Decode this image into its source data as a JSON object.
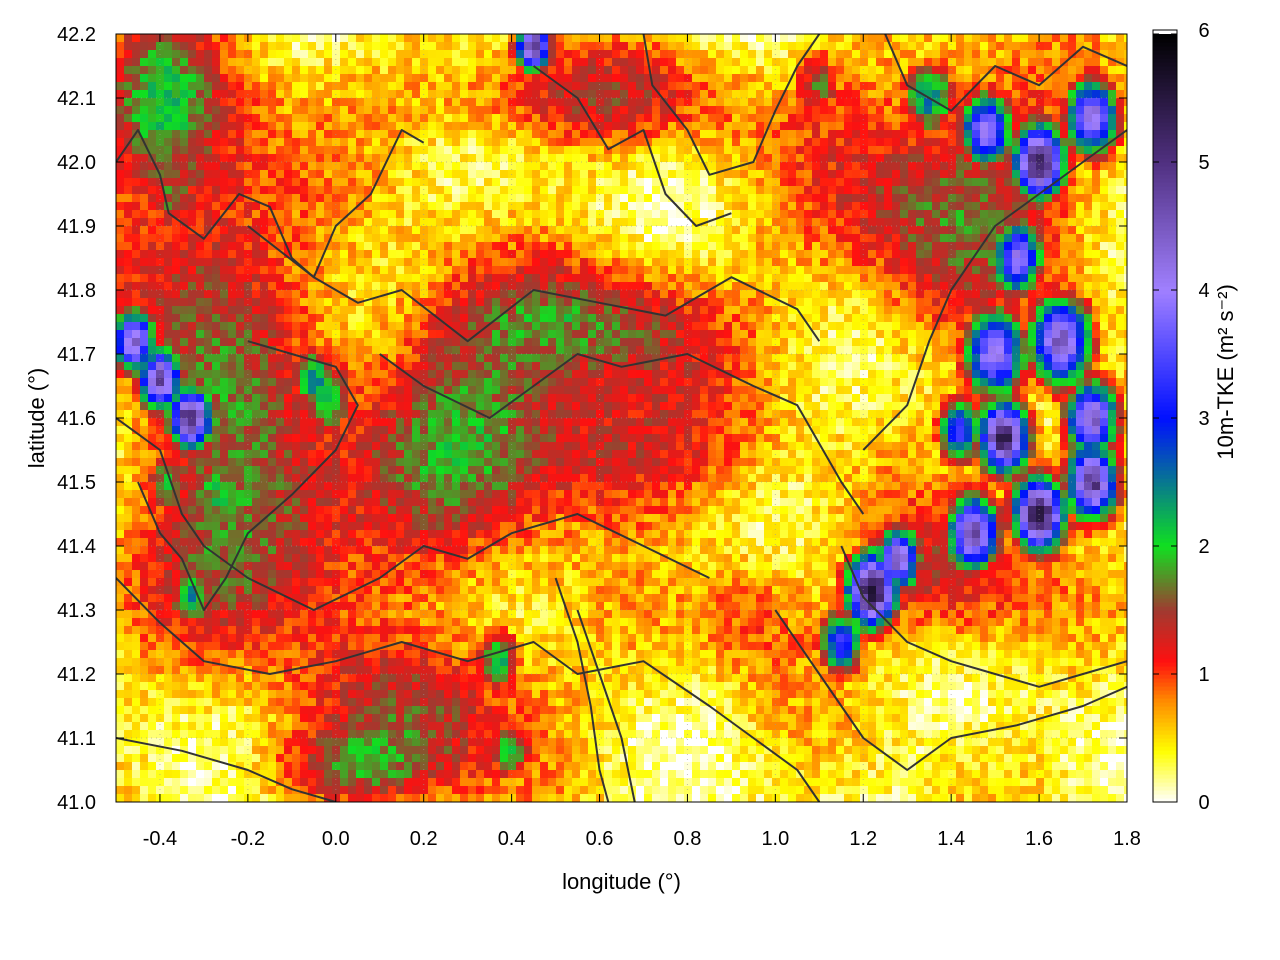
{
  "chart_data": {
    "type": "heatmap",
    "title": "",
    "xlabel": "longitude (°)",
    "ylabel": "latitude (°)",
    "colorbar_label": "10m-TKE (m² s⁻²)",
    "xlim": [
      -0.5,
      1.8
    ],
    "ylim": [
      41.0,
      42.2
    ],
    "zlim": [
      0,
      6
    ],
    "x_ticks": [
      "-0.4",
      "-0.2",
      "0.0",
      "0.2",
      "0.4",
      "0.6",
      "0.8",
      "1.0",
      "1.2",
      "1.4",
      "1.6",
      "1.8"
    ],
    "x_tick_values": [
      -0.4,
      -0.2,
      0.0,
      0.2,
      0.4,
      0.6,
      0.8,
      1.0,
      1.2,
      1.4,
      1.6,
      1.8
    ],
    "y_ticks": [
      "41.0",
      "41.1",
      "41.2",
      "41.3",
      "41.4",
      "41.5",
      "41.6",
      "41.7",
      "41.8",
      "41.9",
      "42.0",
      "42.1",
      "42.2"
    ],
    "y_tick_values": [
      41.0,
      41.1,
      41.2,
      41.3,
      41.4,
      41.5,
      41.6,
      41.7,
      41.8,
      41.9,
      42.0,
      42.1,
      42.2
    ],
    "colorbar_ticks": [
      "0",
      "1",
      "2",
      "3",
      "4",
      "5",
      "6"
    ],
    "colorbar_tick_values": [
      0,
      1,
      2,
      3,
      4,
      5,
      6
    ],
    "colormap": [
      {
        "v": 0.0,
        "color": "#ffffff"
      },
      {
        "v": 0.4,
        "color": "#ffff00"
      },
      {
        "v": 0.8,
        "color": "#ff8800"
      },
      {
        "v": 1.1,
        "color": "#ff1010"
      },
      {
        "v": 1.5,
        "color": "#a03a30"
      },
      {
        "v": 2.0,
        "color": "#10e020"
      },
      {
        "v": 3.0,
        "color": "#0010ff"
      },
      {
        "v": 4.0,
        "color": "#a080ff"
      },
      {
        "v": 5.0,
        "color": "#503080"
      },
      {
        "v": 6.0,
        "color": "#000000"
      }
    ],
    "grid": true,
    "grid_style": "dotted",
    "contours": true,
    "contour_color": "#333333",
    "field_hotspots": [
      {
        "lon": -0.46,
        "lat": 41.72,
        "tke": 4.5,
        "r": 0.05
      },
      {
        "lon": -0.4,
        "lat": 41.66,
        "tke": 4.8,
        "r": 0.05
      },
      {
        "lon": -0.33,
        "lat": 41.6,
        "tke": 5.2,
        "r": 0.05
      },
      {
        "lon": -0.27,
        "lat": 41.48,
        "tke": 2.0,
        "r": 0.08
      },
      {
        "lon": -0.38,
        "lat": 41.5,
        "tke": 1.9,
        "r": 0.06
      },
      {
        "lon": -0.33,
        "lat": 41.32,
        "tke": 2.4,
        "r": 0.05
      },
      {
        "lon": -0.02,
        "lat": 41.63,
        "tke": 2.1,
        "r": 0.07
      },
      {
        "lon": -0.05,
        "lat": 41.66,
        "tke": 2.6,
        "r": 0.05
      },
      {
        "lon": -0.37,
        "lat": 41.95,
        "tke": 1.7,
        "r": 0.07
      },
      {
        "lon": 0.53,
        "lat": 41.76,
        "tke": 2.0,
        "r": 0.05
      },
      {
        "lon": 0.45,
        "lat": 42.18,
        "tke": 5.0,
        "r": 0.04
      },
      {
        "lon": 0.37,
        "lat": 41.22,
        "tke": 2.3,
        "r": 0.05
      },
      {
        "lon": 0.4,
        "lat": 41.08,
        "tke": 2.1,
        "r": 0.05
      },
      {
        "lon": 1.22,
        "lat": 41.33,
        "tke": 5.6,
        "r": 0.06
      },
      {
        "lon": 1.15,
        "lat": 41.25,
        "tke": 3.4,
        "r": 0.05
      },
      {
        "lon": 1.28,
        "lat": 41.38,
        "tke": 4.5,
        "r": 0.05
      },
      {
        "lon": 1.45,
        "lat": 41.42,
        "tke": 4.8,
        "r": 0.06
      },
      {
        "lon": 1.52,
        "lat": 41.57,
        "tke": 5.3,
        "r": 0.06
      },
      {
        "lon": 1.6,
        "lat": 41.45,
        "tke": 5.6,
        "r": 0.06
      },
      {
        "lon": 1.72,
        "lat": 41.5,
        "tke": 5.0,
        "r": 0.06
      },
      {
        "lon": 1.5,
        "lat": 41.7,
        "tke": 4.2,
        "r": 0.07
      },
      {
        "lon": 1.65,
        "lat": 41.72,
        "tke": 4.6,
        "r": 0.07
      },
      {
        "lon": 1.55,
        "lat": 41.85,
        "tke": 4.0,
        "r": 0.06
      },
      {
        "lon": 1.6,
        "lat": 42.0,
        "tke": 5.4,
        "r": 0.06
      },
      {
        "lon": 1.48,
        "lat": 42.05,
        "tke": 4.0,
        "r": 0.06
      },
      {
        "lon": 1.72,
        "lat": 42.07,
        "tke": 4.4,
        "r": 0.06
      },
      {
        "lon": 1.35,
        "lat": 42.1,
        "tke": 2.6,
        "r": 0.06
      },
      {
        "lon": 1.1,
        "lat": 42.12,
        "tke": 1.6,
        "r": 0.06
      },
      {
        "lon": 1.72,
        "lat": 41.6,
        "tke": 4.5,
        "r": 0.06
      },
      {
        "lon": 1.42,
        "lat": 41.58,
        "tke": 3.4,
        "r": 0.05
      }
    ],
    "field_bands": [
      {
        "lon": -0.3,
        "lat": 41.8,
        "tke": 1.2,
        "rx": 0.22,
        "ry": 0.35
      },
      {
        "lon": -0.15,
        "lat": 41.4,
        "tke": 1.2,
        "rx": 0.25,
        "ry": 0.18
      },
      {
        "lon": 0.25,
        "lat": 41.6,
        "tke": 1.1,
        "rx": 0.22,
        "ry": 0.2
      },
      {
        "lon": 0.6,
        "lat": 41.75,
        "tke": 1.15,
        "rx": 0.3,
        "ry": 0.1
      },
      {
        "lon": 0.6,
        "lat": 41.55,
        "tke": 1.1,
        "rx": 0.3,
        "ry": 0.12
      },
      {
        "lon": 0.55,
        "lat": 42.1,
        "tke": 0.9,
        "rx": 0.4,
        "ry": 0.08
      },
      {
        "lon": 0.25,
        "lat": 41.15,
        "tke": 1.1,
        "rx": 0.25,
        "ry": 0.12
      },
      {
        "lon": 1.4,
        "lat": 41.95,
        "tke": 1.3,
        "rx": 0.3,
        "ry": 0.2
      },
      {
        "lon": 1.4,
        "lat": 41.35,
        "tke": 1.0,
        "rx": 0.2,
        "ry": 0.12
      },
      {
        "lon": -0.4,
        "lat": 42.1,
        "tke": 1.1,
        "rx": 0.12,
        "ry": 0.12
      },
      {
        "lon": 0.95,
        "lat": 41.3,
        "tke": 0.7,
        "rx": 0.15,
        "ry": 0.1
      },
      {
        "lon": 0.05,
        "lat": 41.05,
        "tke": 1.0,
        "rx": 0.2,
        "ry": 0.06
      }
    ],
    "contour_lines": [
      [
        [
          -0.5,
          42.0
        ],
        [
          -0.45,
          42.05
        ],
        [
          -0.4,
          41.98
        ],
        [
          -0.38,
          41.92
        ],
        [
          -0.3,
          41.88
        ],
        [
          -0.22,
          41.95
        ],
        [
          -0.15,
          41.93
        ],
        [
          -0.1,
          41.85
        ],
        [
          -0.05,
          41.82
        ],
        [
          0.0,
          41.9
        ],
        [
          0.08,
          41.95
        ],
        [
          0.15,
          42.05
        ],
        [
          0.2,
          42.03
        ]
      ],
      [
        [
          -0.2,
          41.9
        ],
        [
          -0.05,
          41.82
        ],
        [
          0.05,
          41.78
        ],
        [
          0.15,
          41.8
        ],
        [
          0.3,
          41.72
        ],
        [
          0.45,
          41.8
        ],
        [
          0.6,
          41.78
        ],
        [
          0.75,
          41.76
        ],
        [
          0.9,
          41.82
        ],
        [
          1.05,
          41.77
        ],
        [
          1.1,
          41.72
        ]
      ],
      [
        [
          0.1,
          41.7
        ],
        [
          0.2,
          41.65
        ],
        [
          0.35,
          41.6
        ],
        [
          0.45,
          41.65
        ],
        [
          0.55,
          41.7
        ],
        [
          0.65,
          41.68
        ],
        [
          0.8,
          41.7
        ],
        [
          0.95,
          41.65
        ],
        [
          1.05,
          41.62
        ],
        [
          1.15,
          41.5
        ],
        [
          1.2,
          41.45
        ]
      ],
      [
        [
          -0.5,
          41.6
        ],
        [
          -0.4,
          41.55
        ],
        [
          -0.35,
          41.45
        ],
        [
          -0.3,
          41.4
        ],
        [
          -0.2,
          41.35
        ],
        [
          -0.05,
          41.3
        ],
        [
          0.1,
          41.35
        ],
        [
          0.2,
          41.4
        ],
        [
          0.3,
          41.38
        ],
        [
          0.4,
          41.42
        ],
        [
          0.55,
          41.45
        ],
        [
          0.7,
          41.4
        ],
        [
          0.85,
          41.35
        ]
      ],
      [
        [
          -0.5,
          41.35
        ],
        [
          -0.4,
          41.28
        ],
        [
          -0.3,
          41.22
        ],
        [
          -0.15,
          41.2
        ],
        [
          0.0,
          41.22
        ],
        [
          0.15,
          41.25
        ],
        [
          0.3,
          41.22
        ],
        [
          0.45,
          41.25
        ],
        [
          0.55,
          41.2
        ],
        [
          0.7,
          41.22
        ],
        [
          0.85,
          41.15
        ],
        [
          0.95,
          41.1
        ],
        [
          1.05,
          41.05
        ],
        [
          1.1,
          41.0
        ]
      ],
      [
        [
          -0.5,
          41.1
        ],
        [
          -0.35,
          41.08
        ],
        [
          -0.2,
          41.05
        ],
        [
          -0.1,
          41.02
        ],
        [
          0.0,
          41.0
        ]
      ],
      [
        [
          0.7,
          42.2
        ],
        [
          0.72,
          42.12
        ],
        [
          0.8,
          42.05
        ],
        [
          0.85,
          41.98
        ],
        [
          0.95,
          42.0
        ],
        [
          1.0,
          42.08
        ],
        [
          1.05,
          42.15
        ],
        [
          1.1,
          42.2
        ]
      ],
      [
        [
          0.45,
          42.15
        ],
        [
          0.55,
          42.1
        ],
        [
          0.62,
          42.02
        ],
        [
          0.7,
          42.05
        ],
        [
          0.75,
          41.95
        ],
        [
          0.82,
          41.9
        ],
        [
          0.9,
          41.92
        ]
      ],
      [
        [
          1.15,
          41.4
        ],
        [
          1.2,
          41.32
        ],
        [
          1.3,
          41.25
        ],
        [
          1.4,
          41.22
        ],
        [
          1.5,
          41.2
        ],
        [
          1.6,
          41.18
        ],
        [
          1.7,
          41.2
        ],
        [
          1.8,
          41.22
        ]
      ],
      [
        [
          1.0,
          41.3
        ],
        [
          1.1,
          41.2
        ],
        [
          1.2,
          41.1
        ],
        [
          1.3,
          41.05
        ],
        [
          1.4,
          41.1
        ],
        [
          1.55,
          41.12
        ],
        [
          1.7,
          41.15
        ],
        [
          1.8,
          41.18
        ]
      ],
      [
        [
          1.2,
          41.55
        ],
        [
          1.3,
          41.62
        ],
        [
          1.35,
          41.72
        ],
        [
          1.4,
          41.8
        ],
        [
          1.5,
          41.9
        ],
        [
          1.6,
          41.95
        ],
        [
          1.7,
          42.0
        ],
        [
          1.8,
          42.05
        ]
      ],
      [
        [
          1.25,
          42.2
        ],
        [
          1.3,
          42.12
        ],
        [
          1.4,
          42.08
        ],
        [
          1.5,
          42.15
        ],
        [
          1.6,
          42.12
        ],
        [
          1.7,
          42.18
        ],
        [
          1.8,
          42.15
        ]
      ],
      [
        [
          -0.45,
          41.5
        ],
        [
          -0.4,
          41.42
        ],
        [
          -0.35,
          41.38
        ],
        [
          -0.3,
          41.3
        ],
        [
          -0.25,
          41.35
        ],
        [
          -0.2,
          41.42
        ],
        [
          -0.1,
          41.48
        ],
        [
          0.0,
          41.55
        ],
        [
          0.05,
          41.62
        ],
        [
          0.0,
          41.68
        ],
        [
          -0.1,
          41.7
        ],
        [
          -0.2,
          41.72
        ]
      ],
      [
        [
          0.55,
          41.3
        ],
        [
          0.6,
          41.2
        ],
        [
          0.65,
          41.1
        ],
        [
          0.68,
          41.0
        ]
      ],
      [
        [
          0.5,
          41.35
        ],
        [
          0.55,
          41.25
        ],
        [
          0.58,
          41.15
        ],
        [
          0.6,
          41.05
        ],
        [
          0.62,
          41.0
        ]
      ]
    ]
  }
}
